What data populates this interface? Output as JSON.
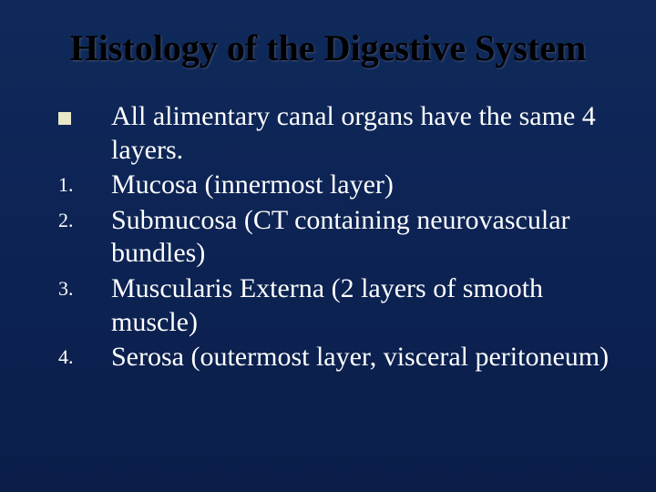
{
  "slide": {
    "background_gradient": [
      "#0f2a5a",
      "#0d2455",
      "#0b1e4a"
    ],
    "title": "Histology of the Digestive System",
    "title_color": "#000000",
    "title_fontsize": 40,
    "body_fontsize": 30,
    "body_color": "#ffffff",
    "bullet_square_color": "#e8e8c8",
    "number_fontsize": 22,
    "items": [
      {
        "marker_type": "square",
        "marker": "",
        "text": "All alimentary canal organs have the same 4 layers."
      },
      {
        "marker_type": "number",
        "marker": "1.",
        "text": "Mucosa (innermost layer)"
      },
      {
        "marker_type": "number",
        "marker": "2.",
        "text": "Submucosa (CT containing neurovascular bundles)"
      },
      {
        "marker_type": "number",
        "marker": "3.",
        "text": "Muscularis Externa  (2 layers of smooth muscle)"
      },
      {
        "marker_type": "number",
        "marker": "4.",
        "text": "Serosa  (outermost layer, visceral peritoneum)"
      }
    ]
  }
}
